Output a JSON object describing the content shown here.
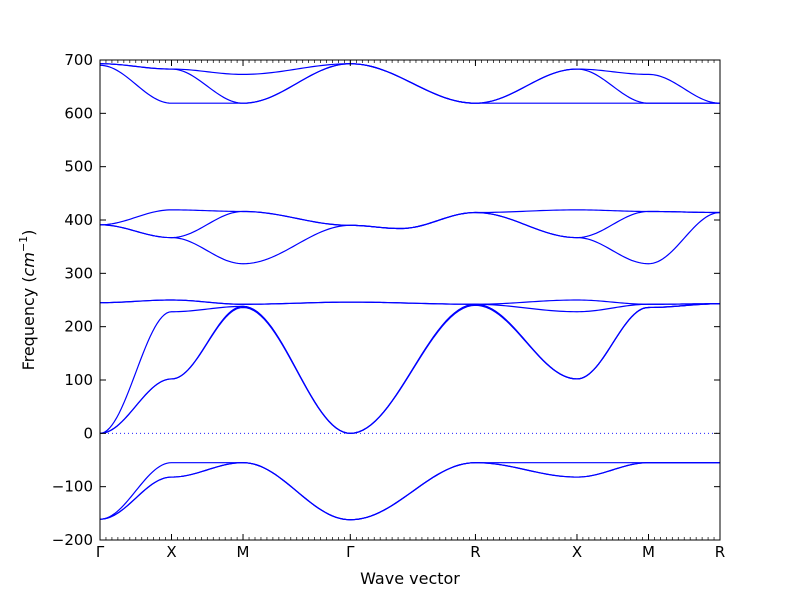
{
  "chart_data": {
    "type": "line",
    "title": "",
    "xlabel": "Wave vector",
    "ylabel": "Frequency ($cm^{-1}$)",
    "ylabel_text": "Frequency (",
    "ylabel_unit_base": "cm",
    "ylabel_unit_exp": "−1",
    "ylabel_close": ")",
    "ylim": [
      -200,
      700
    ],
    "yticks": [
      -200,
      -100,
      0,
      100,
      200,
      300,
      400,
      500,
      600,
      700
    ],
    "grid": false,
    "legend": "none",
    "line_color": "#0000ff",
    "zero_line_color": "#0000ff",
    "high_symmetry_points": [
      {
        "label": "Γ",
        "x": 0
      },
      {
        "label": "X",
        "x": 1
      },
      {
        "label": "M",
        "x": 2
      },
      {
        "label": "Γ",
        "x": 3.5
      },
      {
        "label": "R",
        "x": 5.25
      },
      {
        "label": "X",
        "x": 6.67
      },
      {
        "label": "M",
        "x": 7.67
      },
      {
        "label": "R",
        "x": 8.67
      }
    ],
    "x_range": [
      0,
      8.67
    ],
    "series": [
      {
        "points": [
          [
            0,
            693
          ],
          [
            1,
            683
          ],
          [
            2,
            673
          ],
          [
            3.5,
            693
          ],
          [
            5.25,
            619
          ],
          [
            6.67,
            683
          ],
          [
            7.67,
            673
          ],
          [
            8.67,
            619
          ]
        ]
      },
      {
        "points": [
          [
            0,
            693
          ],
          [
            1,
            683
          ],
          [
            2,
            619
          ],
          [
            3.5,
            693
          ],
          [
            5.25,
            619
          ],
          [
            6.67,
            683
          ],
          [
            7.67,
            619
          ],
          [
            8.67,
            619
          ]
        ]
      },
      {
        "points": [
          [
            0,
            690
          ],
          [
            1,
            619
          ],
          [
            2,
            619
          ],
          [
            3.5,
            693
          ],
          [
            5.25,
            619
          ],
          [
            6.67,
            619
          ],
          [
            7.67,
            619
          ],
          [
            8.67,
            619
          ]
        ]
      },
      {
        "points": [
          [
            0,
            391
          ],
          [
            1,
            419
          ],
          [
            2,
            416
          ],
          [
            3.5,
            390
          ],
          [
            4.2,
            384
          ],
          [
            5.25,
            414
          ],
          [
            6.67,
            419
          ],
          [
            7.67,
            416
          ],
          [
            8.67,
            414
          ]
        ]
      },
      {
        "points": [
          [
            0,
            391
          ],
          [
            1,
            367
          ],
          [
            2,
            416
          ],
          [
            3.5,
            390
          ],
          [
            4.2,
            384
          ],
          [
            5.25,
            414
          ],
          [
            6.67,
            367
          ],
          [
            7.67,
            416
          ],
          [
            8.67,
            414
          ]
        ]
      },
      {
        "points": [
          [
            0,
            391
          ],
          [
            1,
            367
          ],
          [
            2,
            318
          ],
          [
            3.5,
            390
          ],
          [
            4.2,
            384
          ],
          [
            5.25,
            414
          ],
          [
            6.67,
            367
          ],
          [
            7.67,
            318
          ],
          [
            8.67,
            414
          ]
        ]
      },
      {
        "points": [
          [
            0,
            245
          ],
          [
            1,
            250
          ],
          [
            2,
            242
          ],
          [
            3.5,
            246
          ],
          [
            5.25,
            242
          ],
          [
            6.67,
            250
          ],
          [
            7.67,
            242
          ],
          [
            8.67,
            243
          ]
        ]
      },
      {
        "points": [
          [
            0,
            245
          ],
          [
            1,
            250
          ],
          [
            2,
            242
          ],
          [
            3.5,
            246
          ],
          [
            5.25,
            242
          ],
          [
            6.67,
            228
          ],
          [
            7.67,
            242
          ],
          [
            8.67,
            243
          ]
        ]
      },
      {
        "points": [
          [
            0,
            0
          ],
          [
            1,
            228
          ],
          [
            2,
            238
          ],
          [
            3.5,
            0
          ],
          [
            5.25,
            242
          ],
          [
            6.67,
            102
          ],
          [
            7.67,
            236
          ],
          [
            8.67,
            243
          ]
        ]
      },
      {
        "points": [
          [
            0,
            0
          ],
          [
            1,
            102
          ],
          [
            2,
            238
          ],
          [
            3.5,
            0
          ],
          [
            5.25,
            242
          ],
          [
            6.67,
            102
          ],
          [
            7.67,
            236
          ],
          [
            8.67,
            243
          ]
        ]
      },
      {
        "points": [
          [
            0,
            0
          ],
          [
            1,
            102
          ],
          [
            2,
            236
          ],
          [
            3.5,
            0
          ],
          [
            5.25,
            240
          ],
          [
            6.67,
            102
          ],
          [
            7.67,
            236
          ],
          [
            8.67,
            243
          ]
        ]
      },
      {
        "points": [
          [
            0,
            -161
          ],
          [
            1,
            -55
          ],
          [
            2,
            -55
          ],
          [
            3.5,
            -162
          ],
          [
            5.25,
            -55
          ],
          [
            6.67,
            -55
          ],
          [
            7.67,
            -55
          ],
          [
            8.67,
            -55
          ]
        ]
      },
      {
        "points": [
          [
            0,
            -161
          ],
          [
            1,
            -82
          ],
          [
            2,
            -55
          ],
          [
            3.5,
            -162
          ],
          [
            5.25,
            -55
          ],
          [
            6.67,
            -82
          ],
          [
            7.67,
            -55
          ],
          [
            8.67,
            -55
          ]
        ]
      },
      {
        "points": [
          [
            0,
            -161
          ],
          [
            1,
            -82
          ],
          [
            2,
            -55
          ],
          [
            3.5,
            -162
          ],
          [
            5.25,
            -55
          ],
          [
            6.67,
            -82
          ],
          [
            7.67,
            -55
          ],
          [
            8.67,
            -55
          ]
        ]
      }
    ]
  }
}
